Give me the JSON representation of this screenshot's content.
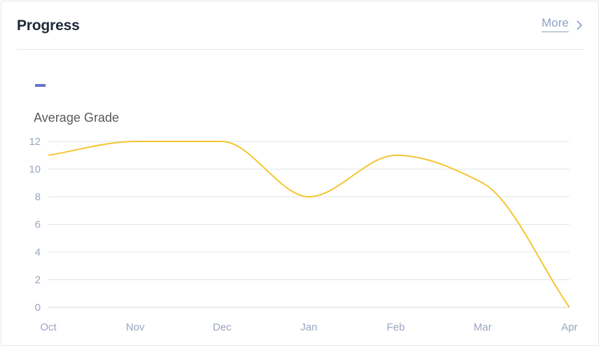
{
  "card": {
    "title": "Progress",
    "more_label": "More",
    "more_icon": "chevron-right-icon"
  },
  "colors": {
    "series": "#f5c531",
    "legend_swatch": "#6672c8",
    "grid": "#e2e4e8",
    "tick_text": "#9aa6bf",
    "link": "#8fa3c6"
  },
  "chart_data": {
    "type": "line",
    "ylabel": "Average Grade",
    "categories": [
      "Oct",
      "Nov",
      "Dec",
      "Jan",
      "Feb",
      "Mar",
      "Apr"
    ],
    "series": [
      {
        "values": [
          11,
          12,
          12,
          8,
          11,
          9,
          0
        ]
      }
    ],
    "ylim": [
      0,
      12
    ],
    "yticks": [
      0,
      2,
      4,
      6,
      8,
      10,
      12
    ],
    "smooth": true,
    "grid": true,
    "legend": "top-left"
  }
}
